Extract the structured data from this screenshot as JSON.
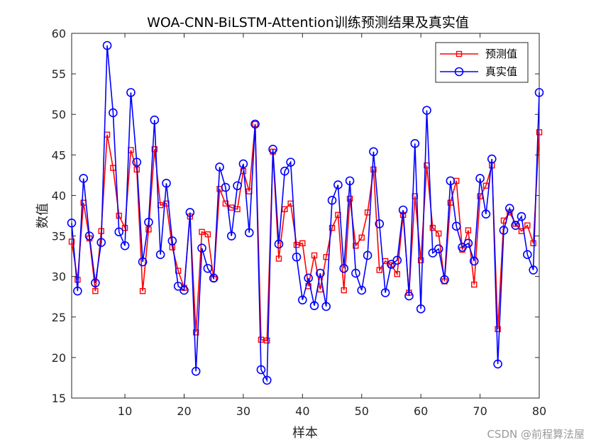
{
  "chart_data": {
    "type": "line",
    "title": "WOA-CNN-BiLSTM-Attention训练预测结果及真实值",
    "xlabel": "样本",
    "ylabel": "数值",
    "xlim": [
      1,
      80
    ],
    "ylim": [
      15,
      60
    ],
    "xticks": [
      10,
      20,
      30,
      40,
      50,
      60,
      70,
      80
    ],
    "yticks": [
      15,
      20,
      25,
      30,
      35,
      40,
      45,
      50,
      55,
      60
    ],
    "grid": false,
    "legend_position": "top-right",
    "series": [
      {
        "name": "预测值",
        "color": "#ff0000",
        "marker": "square",
        "values": [
          34.3,
          29.6,
          39.1,
          34.7,
          28.2,
          35.6,
          47.5,
          43.4,
          37.5,
          36.0,
          45.6,
          43.2,
          28.2,
          35.8,
          45.7,
          38.8,
          39.0,
          33.6,
          30.7,
          28.6,
          37.4,
          23.1,
          35.5,
          35.2,
          29.7,
          40.8,
          39.0,
          38.5,
          38.3,
          43.0,
          40.5,
          48.8,
          22.2,
          22.1,
          45.4,
          32.2,
          38.3,
          39.0,
          33.9,
          34.1,
          28.8,
          32.6,
          28.4,
          32.4,
          36.0,
          37.6,
          28.3,
          39.6,
          33.8,
          34.8,
          37.9,
          43.2,
          30.8,
          31.9,
          31.4,
          30.3,
          37.6,
          28.0,
          39.9,
          32.0,
          43.7,
          36.0,
          35.3,
          29.4,
          39.1,
          41.8,
          33.3,
          35.7,
          29.0,
          39.9,
          41.2,
          43.7,
          23.5,
          36.9,
          37.9,
          36.5,
          35.6,
          36.3,
          34.1,
          47.8
        ]
      },
      {
        "name": "真实值",
        "color": "#0000ff",
        "marker": "circle",
        "values": [
          36.6,
          28.2,
          42.1,
          35.0,
          29.2,
          34.2,
          58.5,
          50.2,
          35.5,
          33.8,
          52.7,
          44.1,
          31.8,
          36.7,
          49.3,
          32.7,
          41.5,
          34.4,
          28.8,
          28.3,
          37.9,
          18.3,
          33.5,
          31.0,
          29.8,
          43.5,
          41.0,
          35.0,
          41.2,
          43.9,
          35.4,
          48.8,
          18.5,
          17.2,
          45.7,
          34.0,
          43.0,
          44.1,
          32.4,
          27.1,
          29.8,
          26.4,
          30.4,
          26.3,
          39.4,
          41.3,
          31.0,
          41.8,
          30.4,
          28.3,
          32.6,
          45.4,
          36.5,
          28.0,
          31.5,
          32.0,
          38.2,
          27.6,
          46.4,
          26.0,
          50.5,
          32.9,
          33.4,
          29.6,
          41.8,
          36.2,
          33.6,
          34.1,
          31.9,
          42.1,
          37.7,
          44.5,
          19.2,
          35.7,
          38.4,
          36.3,
          37.4,
          32.7,
          30.8,
          52.7
        ]
      }
    ]
  },
  "watermark": "CSDN @前程算法屋"
}
